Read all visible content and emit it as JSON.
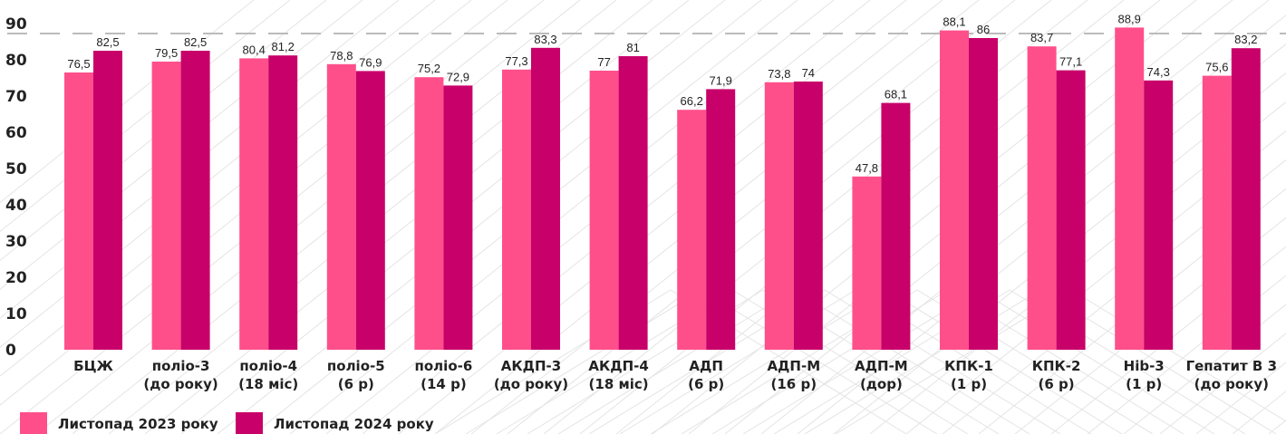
{
  "colors": {
    "series_2023": "#ff4f8b",
    "series_2024": "#c8006a",
    "reference_line": "#bbbbbb",
    "background_hatch": "#e4e4e4"
  },
  "chart_data": {
    "type": "bar",
    "title": "",
    "xlabel": "",
    "ylabel": "",
    "ylim": [
      0,
      90
    ],
    "yticks": [
      0,
      10,
      20,
      30,
      40,
      50,
      60,
      70,
      80,
      90
    ],
    "reference_line": 90,
    "grid": false,
    "legend_position": "bottom-left",
    "categories": [
      [
        "БЦЖ"
      ],
      [
        "поліо-3",
        "(до року)"
      ],
      [
        "поліо-4",
        "(18 міс)"
      ],
      [
        "поліо-5",
        "(6 р)"
      ],
      [
        "поліо-6",
        "(14 р)"
      ],
      [
        "АКДП-3",
        "(до року)"
      ],
      [
        "АКДП-4",
        "(18 міс)"
      ],
      [
        "АДП",
        "(6 р)"
      ],
      [
        "АДП-М",
        "(16 р)"
      ],
      [
        "АДП-М",
        "(дор)"
      ],
      [
        "КПК-1",
        "(1 р)"
      ],
      [
        "КПК-2",
        "(6 р)"
      ],
      [
        "Hib-3",
        "(1 р)"
      ],
      [
        "Гепатит В 3",
        "(до року)"
      ]
    ],
    "series": [
      {
        "name": "Листопад 2023 року",
        "values": [
          76.5,
          79.5,
          80.4,
          78.8,
          75.2,
          77.3,
          77,
          66.2,
          73.8,
          47.8,
          88.1,
          83.7,
          88.9,
          75.6
        ],
        "labels": [
          "76,5",
          "79,5",
          "80,4",
          "78,8",
          "75,2",
          "77,3",
          "77",
          "66,2",
          "73,8",
          "47,8",
          "88,1",
          "83,7",
          "88,9",
          "75,6"
        ]
      },
      {
        "name": "Листопад 2024 року",
        "values": [
          82.5,
          82.5,
          81.2,
          76.9,
          72.9,
          83.3,
          81,
          71.9,
          74,
          68.1,
          86,
          77.1,
          74.3,
          83.2
        ],
        "labels": [
          "82,5",
          "82,5",
          "81,2",
          "76,9",
          "72,9",
          "83,3",
          "81",
          "71,9",
          "74",
          "68,1",
          "86",
          "77,1",
          "74,3",
          "83,2"
        ]
      }
    ]
  }
}
